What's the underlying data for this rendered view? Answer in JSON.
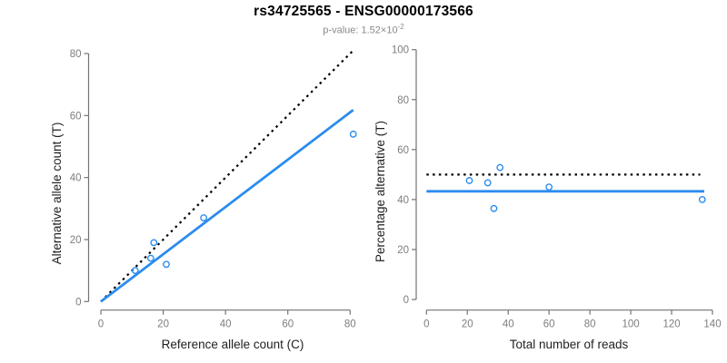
{
  "header": {
    "title": "rs34725565 - ENSG00000173566",
    "pvalue_prefix": "p-value: 1.52×10",
    "pvalue_exponent": "-2"
  },
  "colors": {
    "accent_blue": "#2b8cf0",
    "dotted_line": "#000000",
    "axis_line": "#737373",
    "tick_label": "#7d7d7d",
    "axis_title": "#1f1f1f",
    "title": "#000000",
    "subtitle": "#8a8a8a",
    "background": "#ffffff"
  },
  "chart_data": [
    {
      "type": "scatter",
      "name": "allele-counts",
      "xlabel": "Reference allele count (C)",
      "ylabel": "Alternative allele count (T)",
      "xlim": [
        0,
        80
      ],
      "ylim": [
        0,
        80
      ],
      "xticks": [
        0,
        20,
        40,
        60,
        80
      ],
      "yticks": [
        0,
        20,
        40,
        60,
        80
      ],
      "grid": false,
      "legend": null,
      "points": [
        [
          11,
          10
        ],
        [
          16,
          14
        ],
        [
          17,
          19
        ],
        [
          21,
          12
        ],
        [
          33,
          27
        ],
        [
          81,
          54
        ]
      ],
      "lines": [
        {
          "name": "identity-line",
          "style": "dotted",
          "color": "#000000",
          "x1": 0,
          "y1": 0,
          "x2": 80.8,
          "y2": 80.8
        },
        {
          "name": "fit-line",
          "style": "solid",
          "color": "#2b8cf0",
          "x1": 0,
          "y1": 0,
          "x2": 81,
          "y2": 61.8
        }
      ]
    },
    {
      "type": "scatter",
      "name": "percentage-vs-coverage",
      "xlabel": "Total number of reads",
      "ylabel": "Percentage alternative (T)",
      "xlim": [
        0,
        140
      ],
      "ylim": [
        0,
        100
      ],
      "xticks": [
        0,
        20,
        40,
        60,
        80,
        100,
        120,
        140
      ],
      "yticks": [
        0,
        20,
        40,
        60,
        80,
        100
      ],
      "grid": false,
      "legend": null,
      "points": [
        [
          21,
          47.6
        ],
        [
          30,
          46.7
        ],
        [
          33,
          36.4
        ],
        [
          36,
          52.8
        ],
        [
          60,
          45
        ],
        [
          135,
          40
        ]
      ],
      "lines": [
        {
          "name": "expected-percentage-line",
          "style": "dotted",
          "color": "#000000",
          "x1": 0,
          "y1": 50,
          "x2": 134,
          "y2": 50
        },
        {
          "name": "estimated-percentage-line",
          "style": "solid",
          "color": "#2b8cf0",
          "x1": 0,
          "y1": 43.3,
          "x2": 136,
          "y2": 43.3
        }
      ]
    }
  ]
}
